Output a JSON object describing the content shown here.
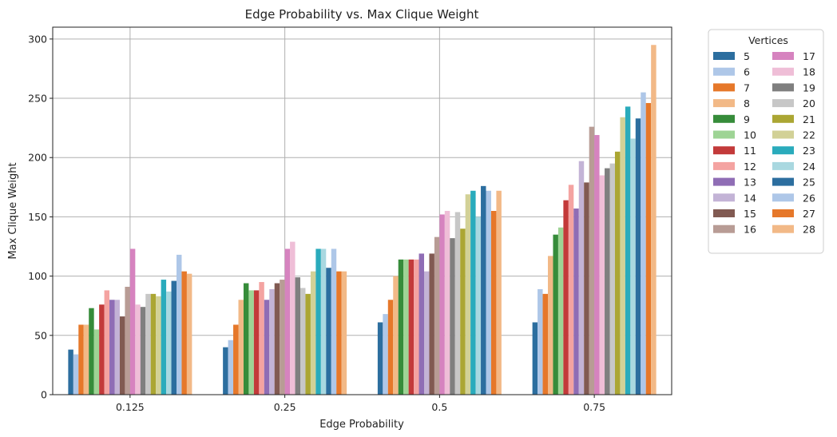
{
  "chart_data": {
    "type": "bar",
    "title": "Edge Probability vs. Max Clique Weight",
    "xlabel": "Edge Probability",
    "ylabel": "Max Clique Weight",
    "categories": [
      "0.125",
      "0.25",
      "0.5",
      "0.75"
    ],
    "ylim": [
      0,
      310
    ],
    "yticks": [
      0,
      50,
      100,
      150,
      200,
      250,
      300
    ],
    "grid": true,
    "legend": {
      "title": "Vertices",
      "placement": "outside-right",
      "columns": 2
    },
    "series": [
      {
        "name": "5",
        "color": "#2c6e9f",
        "values": [
          38,
          40,
          61,
          61
        ]
      },
      {
        "name": "6",
        "color": "#aec7e8",
        "values": [
          34,
          46,
          68,
          89
        ]
      },
      {
        "name": "7",
        "color": "#e6782a",
        "values": [
          59,
          59,
          80,
          85
        ]
      },
      {
        "name": "8",
        "color": "#f2b987",
        "values": [
          59,
          80,
          100,
          117
        ]
      },
      {
        "name": "9",
        "color": "#368c3a",
        "values": [
          73,
          94,
          114,
          135
        ]
      },
      {
        "name": "10",
        "color": "#9ed495",
        "values": [
          55,
          88,
          114,
          141
        ]
      },
      {
        "name": "11",
        "color": "#c33a3a",
        "values": [
          76,
          88,
          114,
          164
        ]
      },
      {
        "name": "12",
        "color": "#f4a3a1",
        "values": [
          88,
          95,
          114,
          177
        ]
      },
      {
        "name": "13",
        "color": "#8f6db5",
        "values": [
          80,
          80,
          119,
          157
        ]
      },
      {
        "name": "14",
        "color": "#c3b3d6",
        "values": [
          80,
          89,
          104,
          197
        ]
      },
      {
        "name": "15",
        "color": "#815a52",
        "values": [
          66,
          94,
          119,
          179
        ]
      },
      {
        "name": "16",
        "color": "#b89c95",
        "values": [
          91,
          97,
          133,
          226
        ]
      },
      {
        "name": "17",
        "color": "#d683bf",
        "values": [
          123,
          123,
          152,
          219
        ]
      },
      {
        "name": "18",
        "color": "#efbed7",
        "values": [
          76,
          129,
          155,
          185
        ]
      },
      {
        "name": "19",
        "color": "#7f7f7f",
        "values": [
          74,
          99,
          132,
          191
        ]
      },
      {
        "name": "20",
        "color": "#c7c7c7",
        "values": [
          85,
          90,
          154,
          195
        ]
      },
      {
        "name": "21",
        "color": "#aba633",
        "values": [
          85,
          85,
          140,
          205
        ]
      },
      {
        "name": "22",
        "color": "#d2d197",
        "values": [
          83,
          104,
          169,
          234
        ]
      },
      {
        "name": "23",
        "color": "#2aabbc",
        "values": [
          97,
          123,
          172,
          243
        ]
      },
      {
        "name": "24",
        "color": "#a9d8e0",
        "values": [
          87,
          123,
          150,
          216
        ]
      },
      {
        "name": "25",
        "color": "#2c6e9f",
        "values": [
          96,
          107,
          176,
          233
        ]
      },
      {
        "name": "26",
        "color": "#aec7e8",
        "values": [
          118,
          123,
          172,
          255
        ]
      },
      {
        "name": "27",
        "color": "#e6782a",
        "values": [
          104,
          104,
          155,
          246
        ]
      },
      {
        "name": "28",
        "color": "#f2b987",
        "values": [
          102,
          104,
          172,
          295
        ]
      }
    ]
  }
}
